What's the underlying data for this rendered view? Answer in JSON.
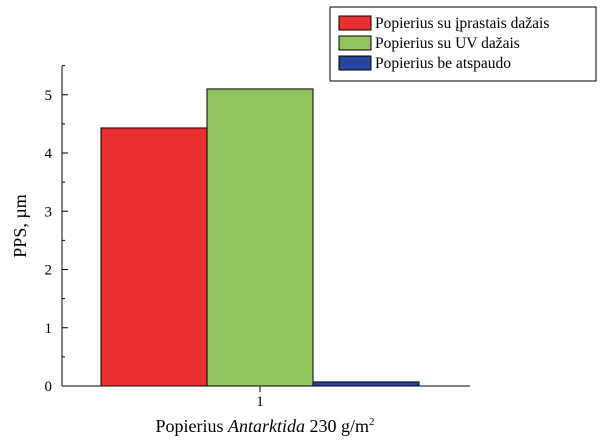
{
  "chart_data": {
    "type": "bar",
    "categories": [
      "1"
    ],
    "series": [
      {
        "name": "Popierius su įprastais dažais",
        "values": [
          4.43
        ],
        "color": "#e83030"
      },
      {
        "name": "Popierius su UV dažais",
        "values": [
          5.1
        ],
        "color": "#92c45e"
      },
      {
        "name": "Popierius be atspaudo",
        "values": [
          0.07
        ],
        "color": "#2546a0"
      }
    ],
    "title": "",
    "xlabel": {
      "prefix": "Popierius ",
      "italic": "Antarktida",
      "suffix": " 230 g/m",
      "sup": "2"
    },
    "ylabel": "PPS, µm",
    "ylim": [
      0,
      5.5
    ],
    "yticks": [
      "0",
      "1",
      "2",
      "3",
      "4",
      "5"
    ],
    "grid": false,
    "legend_position": "top-right"
  }
}
